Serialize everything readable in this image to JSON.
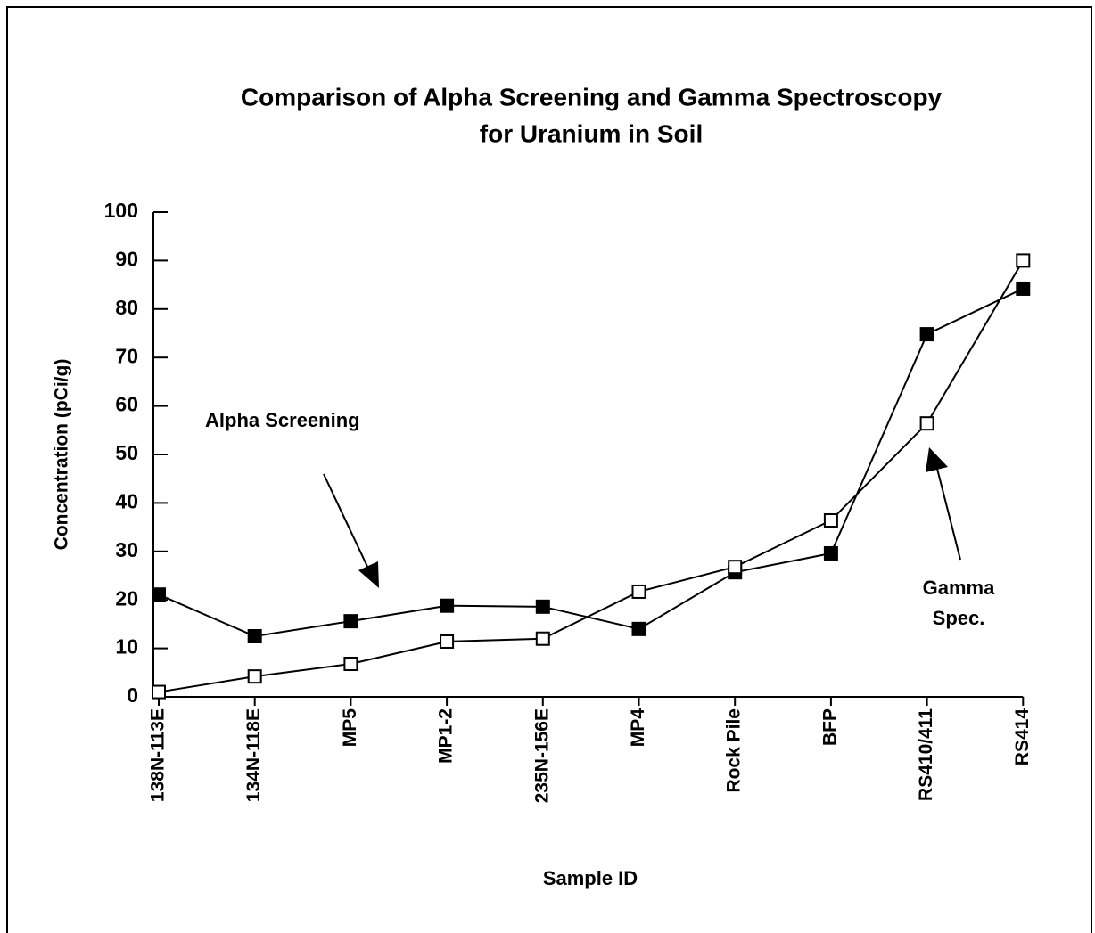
{
  "chart_data": {
    "type": "line",
    "title": [
      "Comparison of Alpha Screening and Gamma Spectroscopy",
      "for Uranium in Soil"
    ],
    "x_label": "Sample ID",
    "y_label": "Concentration (pCi/g)",
    "categories": [
      "138N-113E",
      "134N-118E",
      "MP5",
      "MP1-2",
      "235N-156E",
      "MP4",
      "Rock Pile",
      "BFP",
      "RS410/411",
      "RS414"
    ],
    "series": [
      {
        "name": "Alpha Screening",
        "color": "#000000",
        "marker": "filled-square",
        "values": [
          21.1,
          12.5,
          15.6,
          18.8,
          18.6,
          14,
          25.7,
          29.6,
          74.8,
          84.2
        ]
      },
      {
        "name": "Gamma Spec.",
        "color": "#000000",
        "marker": "open-square",
        "values": [
          1,
          4.2,
          6.8,
          11.4,
          12,
          21.7,
          26.8,
          36.4,
          56.4,
          90
        ]
      }
    ],
    "ylim": [
      0,
      100
    ],
    "yticks": [
      0,
      10,
      20,
      30,
      40,
      50,
      60,
      70,
      80,
      90,
      100
    ],
    "grid": false
  }
}
